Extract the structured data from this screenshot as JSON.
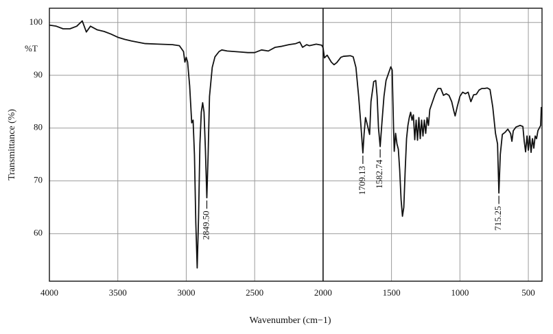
{
  "chart_data": {
    "type": "line",
    "x_label": "Wavenumber (cm−1)",
    "y_label": "Transmittance (%)",
    "unit_label": "%T",
    "color": "#111111",
    "grid": true,
    "divider": 2000,
    "xlim": [
      4000,
      400
    ],
    "ylim": [
      51,
      102.7
    ],
    "xticks": [
      4000,
      3500,
      3000,
      2500,
      2000,
      1500,
      1000,
      500
    ],
    "yticks": [
      60,
      70,
      80,
      90,
      100
    ],
    "x": [
      4000,
      3950,
      3900,
      3850,
      3800,
      3760,
      3730,
      3700,
      3650,
      3600,
      3550,
      3500,
      3450,
      3400,
      3300,
      3200,
      3100,
      3050,
      3020,
      3010,
      3000,
      2990,
      2975,
      2960,
      2950,
      2940,
      2930,
      2920,
      2910,
      2900,
      2890,
      2880,
      2870,
      2860,
      2849.5,
      2840,
      2830,
      2810,
      2790,
      2760,
      2740,
      2700,
      2600,
      2550,
      2500,
      2450,
      2400,
      2350,
      2300,
      2250,
      2200,
      2170,
      2150,
      2120,
      2100,
      2050,
      2010,
      2000,
      1990,
      1970,
      1940,
      1920,
      1900,
      1870,
      1850,
      1800,
      1780,
      1760,
      1740,
      1725,
      1709.13,
      1700,
      1690,
      1680,
      1660,
      1650,
      1630,
      1615,
      1605,
      1595,
      1582.74,
      1570,
      1555,
      1540,
      1520,
      1505,
      1495,
      1485,
      1480,
      1470,
      1460,
      1450,
      1440,
      1430,
      1420,
      1410,
      1400,
      1390,
      1380,
      1370,
      1360,
      1350,
      1340,
      1330,
      1320,
      1310,
      1300,
      1290,
      1280,
      1270,
      1260,
      1250,
      1240,
      1230,
      1220,
      1200,
      1180,
      1160,
      1140,
      1120,
      1100,
      1080,
      1060,
      1045,
      1035,
      1020,
      1000,
      980,
      960,
      940,
      920,
      900,
      880,
      860,
      840,
      820,
      800,
      780,
      760,
      740,
      725,
      715.25,
      705,
      690,
      670,
      650,
      630,
      620,
      610,
      590,
      560,
      540,
      530,
      520,
      510,
      500,
      490,
      480,
      470,
      460,
      450,
      440,
      430,
      420,
      410,
      405
    ],
    "values": [
      99.5,
      99.3,
      98.8,
      98.8,
      99.3,
      100.3,
      98.2,
      99.3,
      98.6,
      98.3,
      97.8,
      97.2,
      96.8,
      96.5,
      96.0,
      95.9,
      95.8,
      95.6,
      94.5,
      92.5,
      93.4,
      92.5,
      88,
      81,
      81.5,
      75,
      62,
      53.5,
      63,
      77,
      83,
      84.8,
      83,
      76,
      66.8,
      75,
      86,
      91.5,
      93.5,
      94.5,
      94.8,
      94.6,
      94.4,
      94.3,
      94.3,
      94.8,
      94.6,
      95.3,
      95.5,
      95.8,
      96.0,
      96.3,
      95.3,
      95.8,
      95.6,
      95.9,
      95.7,
      95.2,
      93.3,
      93.8,
      92.5,
      92.0,
      92.4,
      93.4,
      93.6,
      93.7,
      93.5,
      91.5,
      86,
      81,
      75.3,
      79,
      82,
      81,
      78.8,
      85,
      88.8,
      89,
      86,
      80,
      76.5,
      81,
      86,
      89,
      90.5,
      91.6,
      91,
      80,
      75.6,
      79,
      77,
      76,
      72,
      66.5,
      63.3,
      65,
      72,
      78,
      80.5,
      82,
      83,
      81.5,
      82.5,
      77.8,
      81.5,
      77.7,
      82,
      78,
      81.5,
      78.5,
      81.5,
      79,
      82,
      80.5,
      83.5,
      85,
      86.5,
      87.5,
      87.5,
      86.2,
      86.5,
      86.2,
      85,
      83.3,
      82.3,
      84,
      86,
      86.8,
      86.5,
      86.8,
      85,
      86.3,
      86.4,
      87.2,
      87.5,
      87.5,
      87.6,
      87.3,
      84,
      79,
      77,
      67.7,
      75,
      78.8,
      79.2,
      79.8,
      79,
      77.5,
      79.5,
      80.2,
      80.5,
      80.3,
      77.5,
      75.5,
      78.5,
      75.8,
      78.5,
      75.4,
      78,
      76.2,
      78.5,
      78.0,
      79.5,
      80.0,
      80.5,
      84
    ],
    "annotations": [
      {
        "label": "2849.50",
        "x": 2849.5,
        "y": 66.8
      },
      {
        "label": "1709.13",
        "x": 1709.13,
        "y": 75.3
      },
      {
        "label": "1582.74",
        "x": 1582.74,
        "y": 76.5
      },
      {
        "label": "715.25",
        "x": 715.25,
        "y": 67.7
      }
    ]
  }
}
